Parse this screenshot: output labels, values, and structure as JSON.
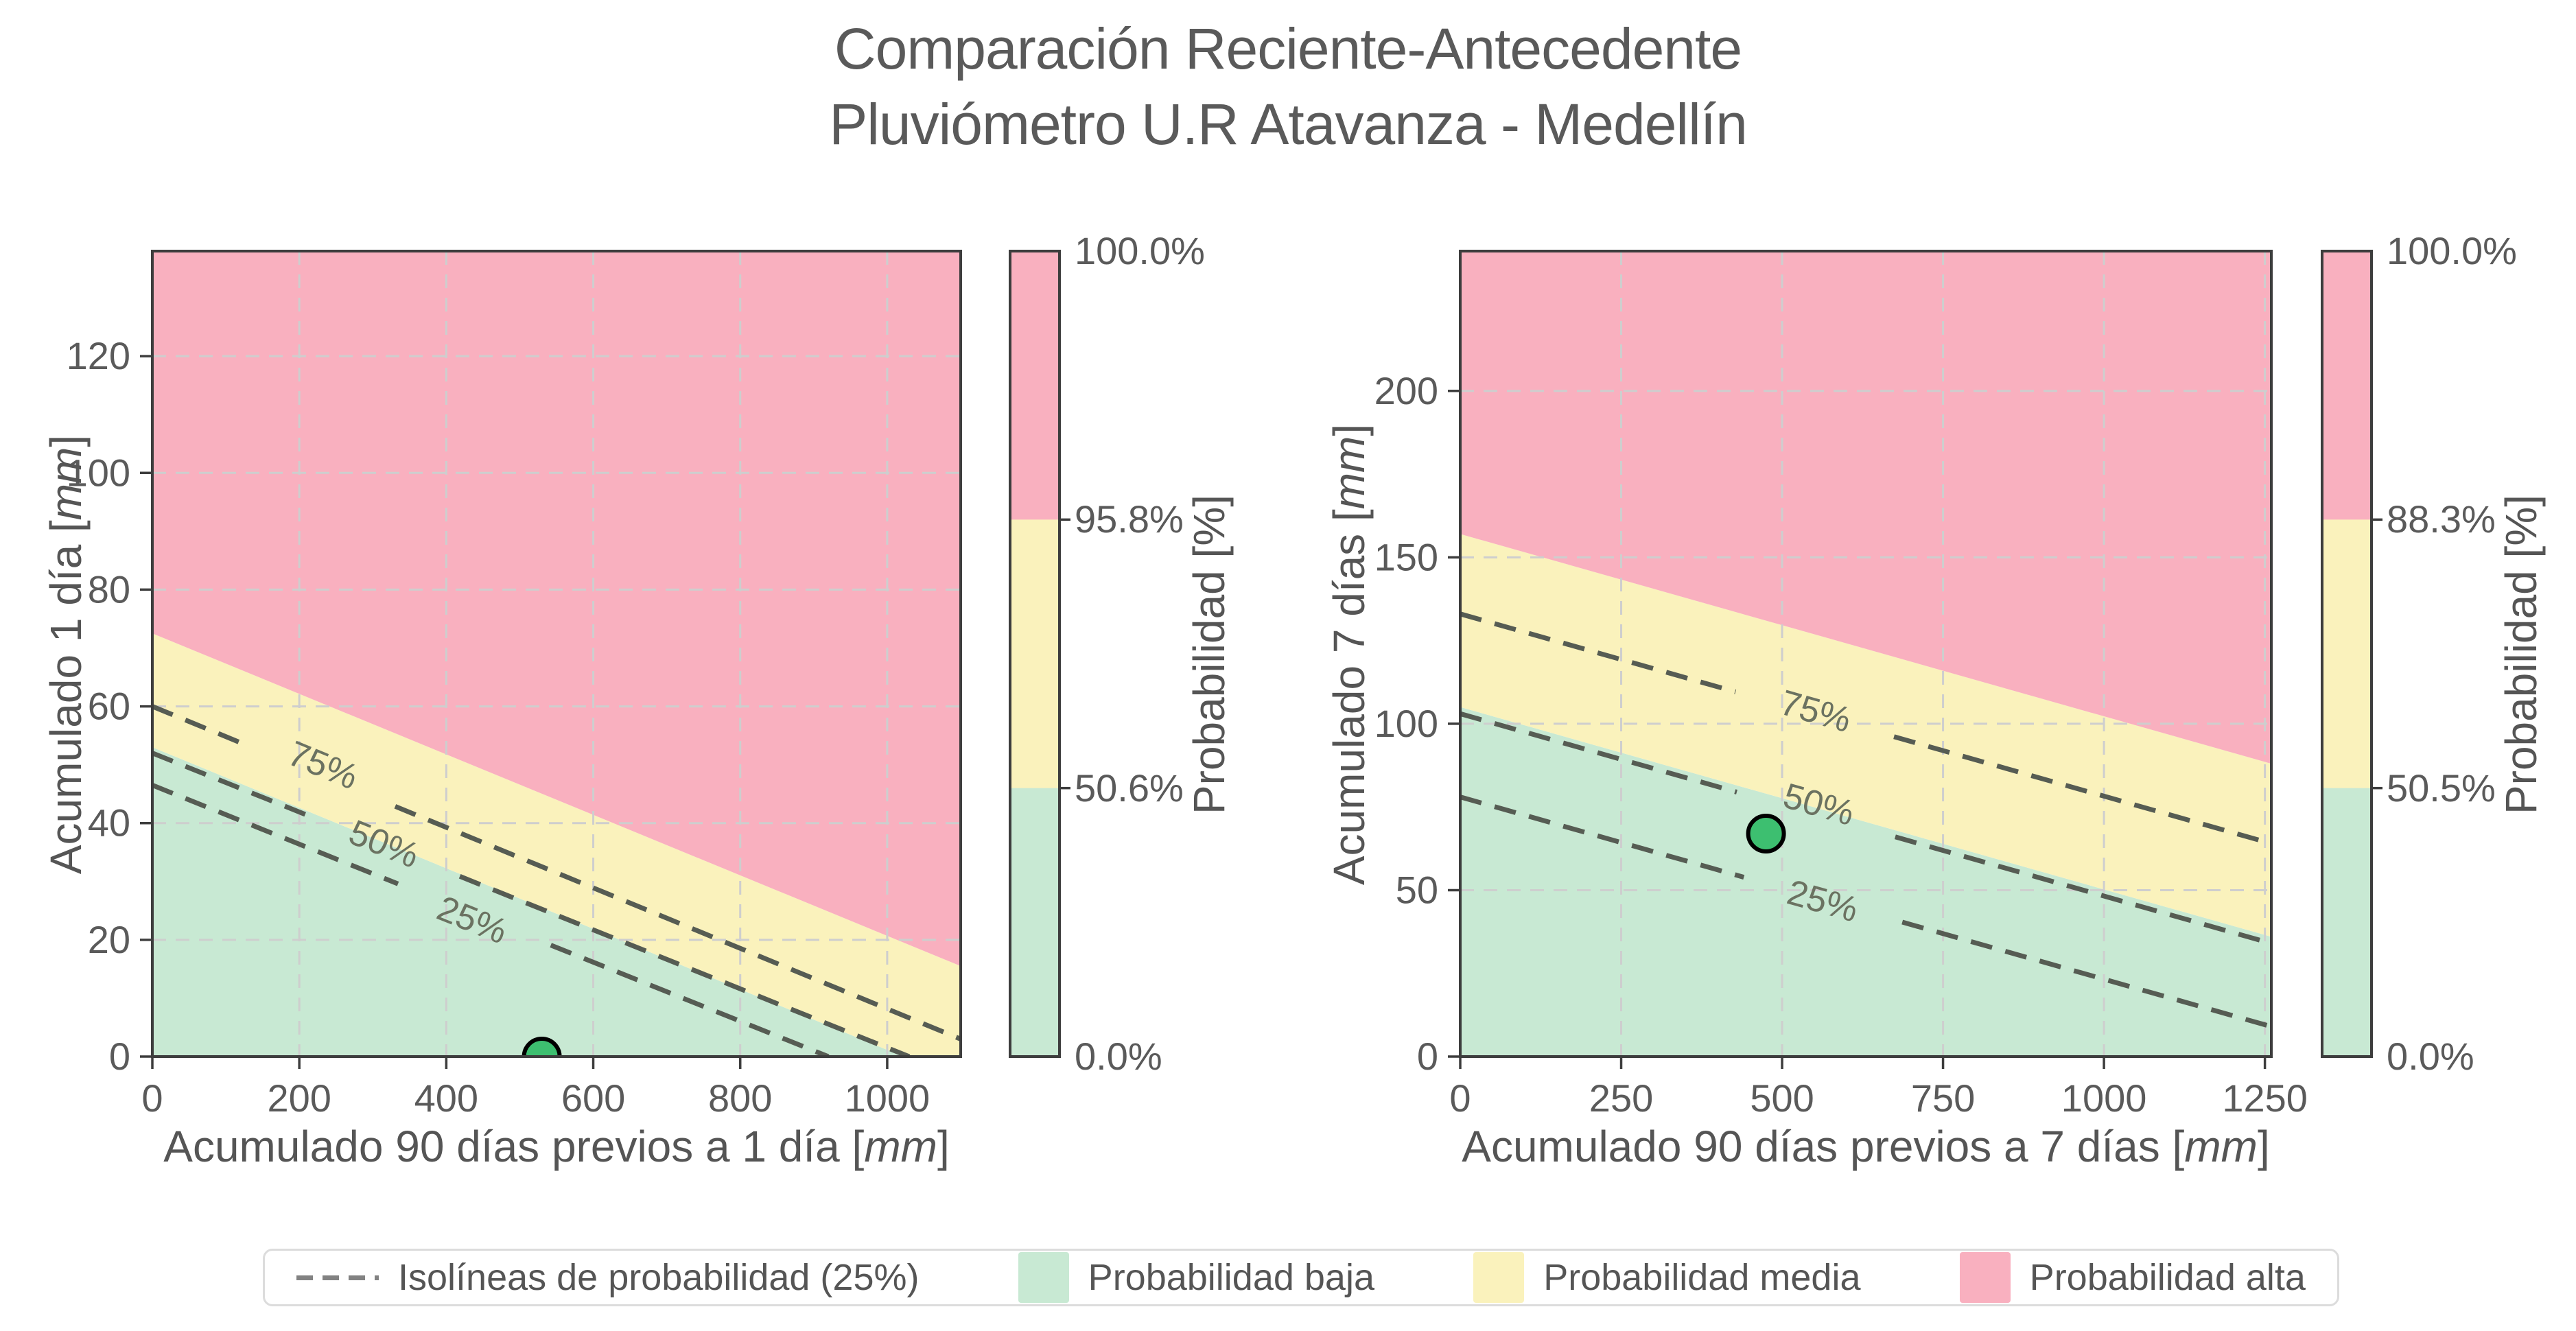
{
  "title": {
    "line1": "Comparación Reciente-Antecedente",
    "line2": "Pluviómetro U.R Atavanza - Medellín"
  },
  "colors": {
    "region_low": "#c8e9d3",
    "region_medium": "#faf2bc",
    "region_high": "#f9b0bf",
    "point_fill": "#3dbf70",
    "point_edge": "#000000",
    "isoline": "#565c53",
    "isoline_label": "#6b7261",
    "grid": "#cecece",
    "spine": "#3d3d3d",
    "text": "#5a5a5a",
    "legend_dash": "#828282",
    "legend_border": "#dcdcdc"
  },
  "legend": {
    "items": [
      {
        "label": "Isolíneas de probabilidad (25%)",
        "swatch": "dash"
      },
      {
        "label": "Probabilidad baja",
        "swatch": "region_low"
      },
      {
        "label": "Probabilidad media",
        "swatch": "region_medium"
      },
      {
        "label": "Probabilidad alta",
        "swatch": "region_high"
      }
    ]
  },
  "chart_data": {
    "type": "area",
    "description": "Two filled probability-region contour plots (low/medium/high) with dashed probability isolines every 25%, one observation point per plot, and a discrete 3-segment colorbar per plot.",
    "plots": [
      {
        "name": "Acumulado 1 día",
        "xlabel": "Acumulado 90 días previos a 1 día [mm]",
        "ylabel": "Acumulado 1 día [mm]",
        "xlim": [
          0,
          1100
        ],
        "ylim": [
          0,
          138
        ],
        "xticks": [
          0,
          200,
          400,
          600,
          800,
          1000
        ],
        "yticks": [
          0,
          20,
          40,
          60,
          80,
          100,
          120
        ],
        "regions": {
          "low": [
            [
              0,
              0
            ],
            [
              0,
              53
            ],
            [
              1022,
              0
            ]
          ],
          "medium": [
            [
              0,
              53
            ],
            [
              0,
              72.5
            ],
            [
              1100,
              15.5
            ],
            [
              1100,
              0
            ],
            [
              1022,
              0
            ]
          ],
          "high": [
            [
              0,
              72.5
            ],
            [
              0,
              138
            ],
            [
              1100,
              138
            ],
            [
              1100,
              15.5
            ]
          ]
        },
        "isolines": [
          {
            "label": "75%",
            "line": [
              [
                0,
                60
              ],
              [
                1100,
                3
              ]
            ],
            "label_at": [
              231,
              49.5
            ]
          },
          {
            "label": "50%",
            "line": [
              [
                0,
                52
              ],
              [
                1030,
                0
              ]
            ],
            "label_at": [
              314,
              36
            ]
          },
          {
            "label": "25%",
            "line": [
              [
                0,
                46.5
              ],
              [
                920,
                0
              ]
            ],
            "label_at": [
              434,
              23
            ]
          }
        ],
        "point": [
          530,
          0
        ],
        "colorbar": {
          "tick_labels": [
            "100.0%",
            "95.8%",
            "50.6%",
            "0.0%"
          ],
          "label": "Probabilidad [%]"
        }
      },
      {
        "name": "Acumulado 7 días",
        "xlabel": "Acumulado 90 días previos a 7 días [mm]",
        "ylabel": "Acumulado 7 días [mm]",
        "xlim": [
          0,
          1260
        ],
        "ylim": [
          0,
          242
        ],
        "xticks": [
          0,
          250,
          500,
          750,
          1000,
          1250
        ],
        "yticks": [
          0,
          50,
          100,
          150,
          200
        ],
        "regions": {
          "low": [
            [
              0,
              0
            ],
            [
              0,
              105
            ],
            [
              1260,
              36
            ],
            [
              1260,
              0
            ]
          ],
          "medium": [
            [
              0,
              105
            ],
            [
              0,
              157
            ],
            [
              1260,
              88
            ],
            [
              1260,
              36
            ]
          ],
          "high": [
            [
              0,
              157
            ],
            [
              0,
              242
            ],
            [
              1260,
              242
            ],
            [
              1260,
              88
            ]
          ]
        },
        "isolines": [
          {
            "label": "75%",
            "line": [
              [
                0,
                133
              ],
              [
                1260,
                64
              ]
            ],
            "label_at": [
              551,
              103
            ]
          },
          {
            "label": "50%",
            "line": [
              [
                0,
                103
              ],
              [
                1260,
                34
              ]
            ],
            "label_at": [
              556,
              75
            ]
          },
          {
            "label": "25%",
            "line": [
              [
                0,
                78
              ],
              [
                1260,
                9
              ]
            ],
            "label_at": [
              562,
              46
            ]
          }
        ],
        "point": [
          475,
          67
        ],
        "colorbar": {
          "tick_labels": [
            "100.0%",
            "88.3%",
            "50.5%",
            "0.0%"
          ],
          "label": "Probabilidad [%]"
        }
      }
    ]
  }
}
